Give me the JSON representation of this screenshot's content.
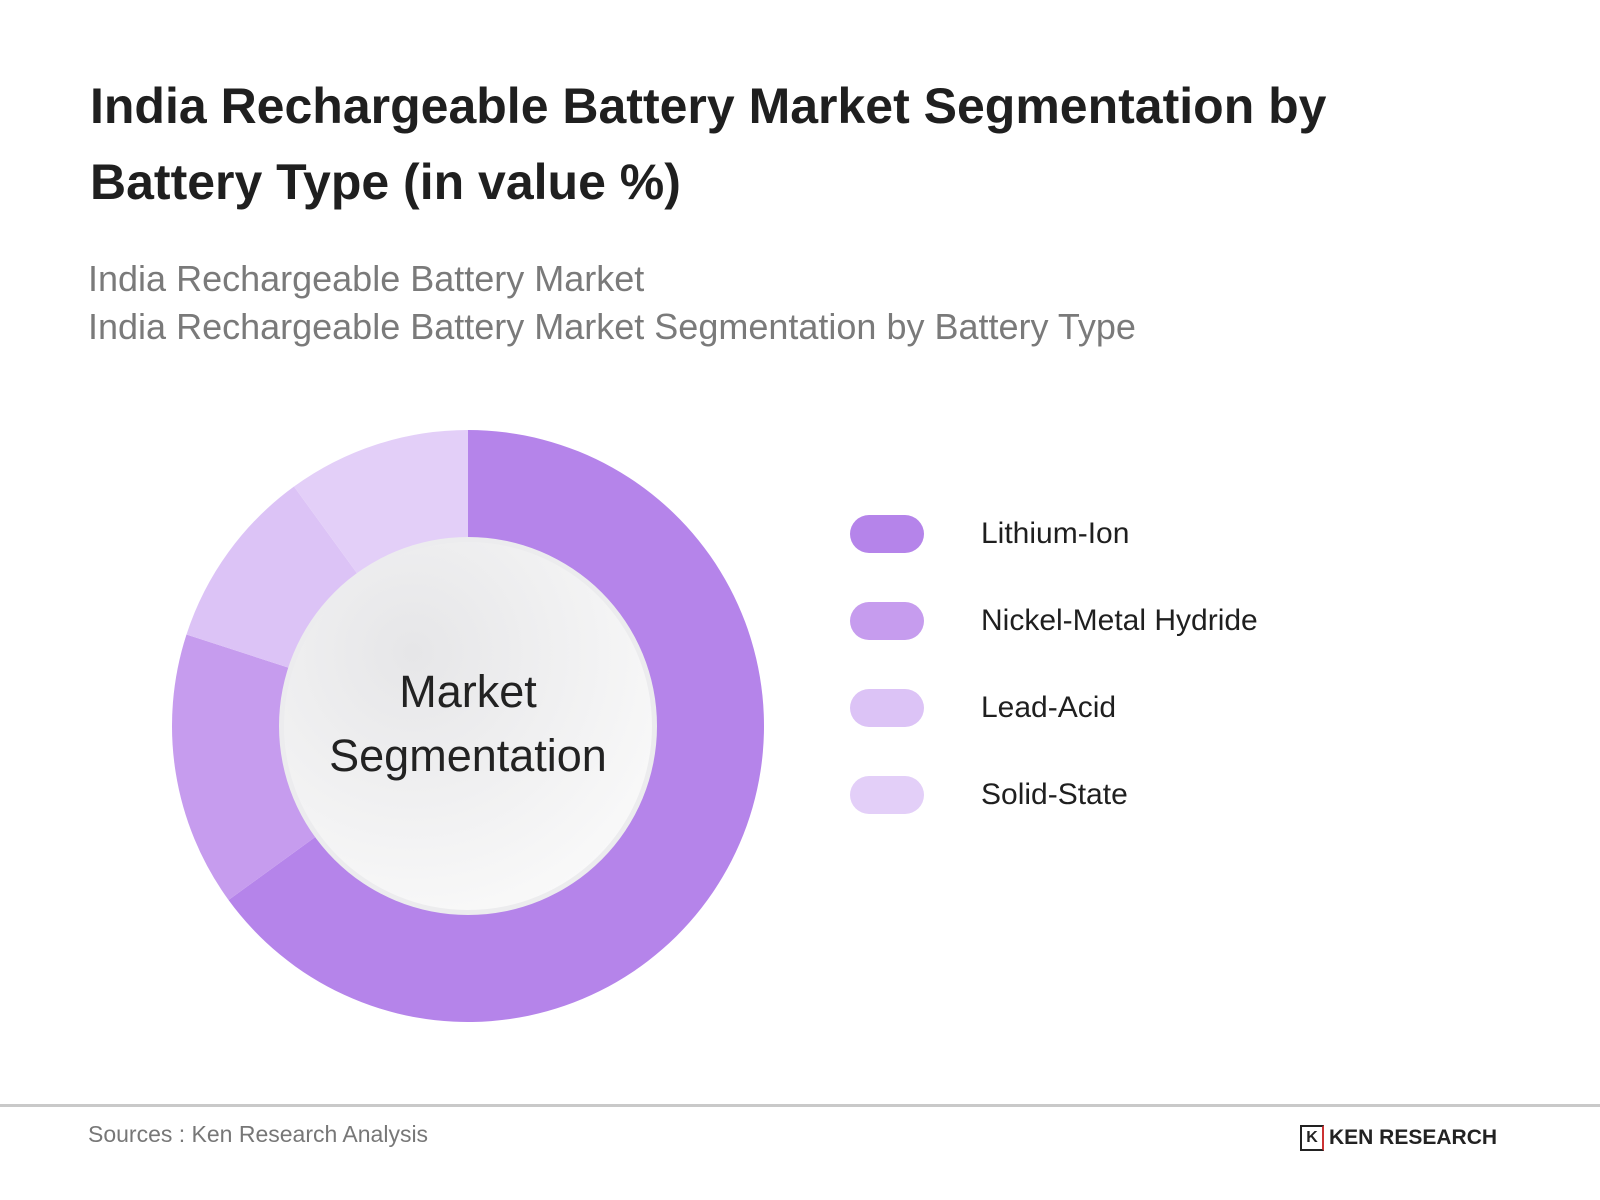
{
  "title": "India Rechargeable Battery Market Segmentation by Battery Type (in value %)",
  "subtitle_1": "India Rechargeable Battery Market",
  "subtitle_2": "India Rechargeable Battery Market Segmentation by Battery Type",
  "center_label_1": "Market",
  "center_label_2": "Segmentation",
  "chart_data": {
    "type": "pie",
    "variant": "donut",
    "title": "India Rechargeable Battery Market Segmentation by Battery Type (in value %)",
    "categories": [
      "Lithium-Ion",
      "Nickel-Metal Hydride",
      "Lead-Acid",
      "Solid-State"
    ],
    "values": [
      65,
      15,
      10,
      10
    ],
    "colors": [
      "#b584ea",
      "#c69cee",
      "#dcc3f6",
      "#e3cff8"
    ],
    "legend_position": "right"
  },
  "footer": {
    "source": "Sources : Ken Research Analysis",
    "logo_text": "KEN RESEARCH",
    "logo_mark": "K"
  }
}
